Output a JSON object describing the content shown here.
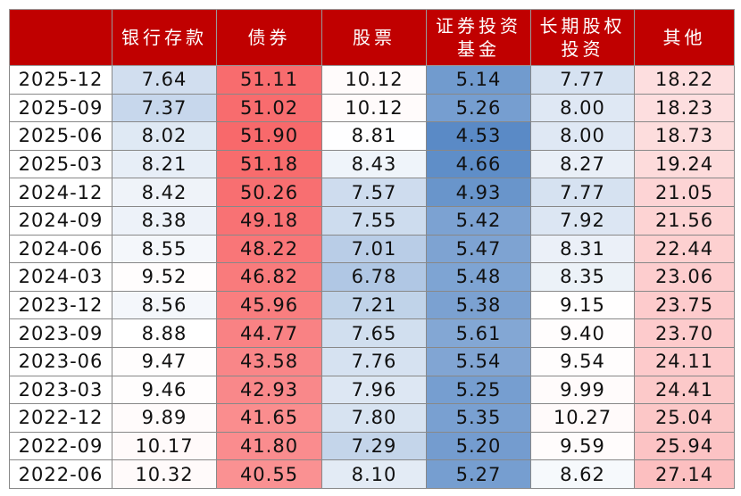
{
  "headers": [
    "",
    "银行存款",
    "债券",
    "股票",
    "证券投资基金",
    "长期股权投资",
    "其他"
  ],
  "color_scale": {
    "low": "#5A8AC6",
    "mid": "#FFFFFF",
    "high": "#F8696B"
  },
  "header_color": "#C00000",
  "rows": [
    {
      "date": "2025-12",
      "values": [
        "7.64",
        "51.11",
        "10.12",
        "5.14",
        "7.77",
        "18.22"
      ]
    },
    {
      "date": "2025-09",
      "values": [
        "7.37",
        "51.02",
        "10.12",
        "5.26",
        "8.00",
        "18.23"
      ]
    },
    {
      "date": "2025-06",
      "values": [
        "8.02",
        "51.90",
        "8.81",
        "4.53",
        "8.00",
        "18.73"
      ]
    },
    {
      "date": "2025-03",
      "values": [
        "8.21",
        "51.18",
        "8.43",
        "4.66",
        "8.27",
        "19.24"
      ]
    },
    {
      "date": "2024-12",
      "values": [
        "8.42",
        "50.26",
        "7.57",
        "4.93",
        "7.77",
        "21.05"
      ]
    },
    {
      "date": "2024-09",
      "values": [
        "8.38",
        "49.18",
        "7.55",
        "5.42",
        "7.92",
        "21.56"
      ]
    },
    {
      "date": "2024-06",
      "values": [
        "8.55",
        "48.22",
        "7.01",
        "5.47",
        "8.31",
        "22.44"
      ]
    },
    {
      "date": "2024-03",
      "values": [
        "9.52",
        "46.82",
        "6.78",
        "5.48",
        "8.35",
        "23.06"
      ]
    },
    {
      "date": "2023-12",
      "values": [
        "8.56",
        "45.96",
        "7.21",
        "5.38",
        "9.15",
        "23.75"
      ]
    },
    {
      "date": "2023-09",
      "values": [
        "8.88",
        "44.77",
        "7.65",
        "5.61",
        "9.40",
        "23.70"
      ]
    },
    {
      "date": "2023-06",
      "values": [
        "9.47",
        "43.58",
        "7.76",
        "5.54",
        "9.54",
        "24.11"
      ]
    },
    {
      "date": "2023-03",
      "values": [
        "9.46",
        "42.93",
        "7.96",
        "5.25",
        "9.99",
        "24.41"
      ]
    },
    {
      "date": "2022-12",
      "values": [
        "9.89",
        "41.65",
        "7.80",
        "5.35",
        "10.27",
        "25.04"
      ]
    },
    {
      "date": "2022-09",
      "values": [
        "10.17",
        "41.80",
        "7.29",
        "5.20",
        "9.59",
        "25.94"
      ]
    },
    {
      "date": "2022-06",
      "values": [
        "10.32",
        "40.55",
        "8.10",
        "5.27",
        "8.62",
        "27.14"
      ]
    }
  ]
}
